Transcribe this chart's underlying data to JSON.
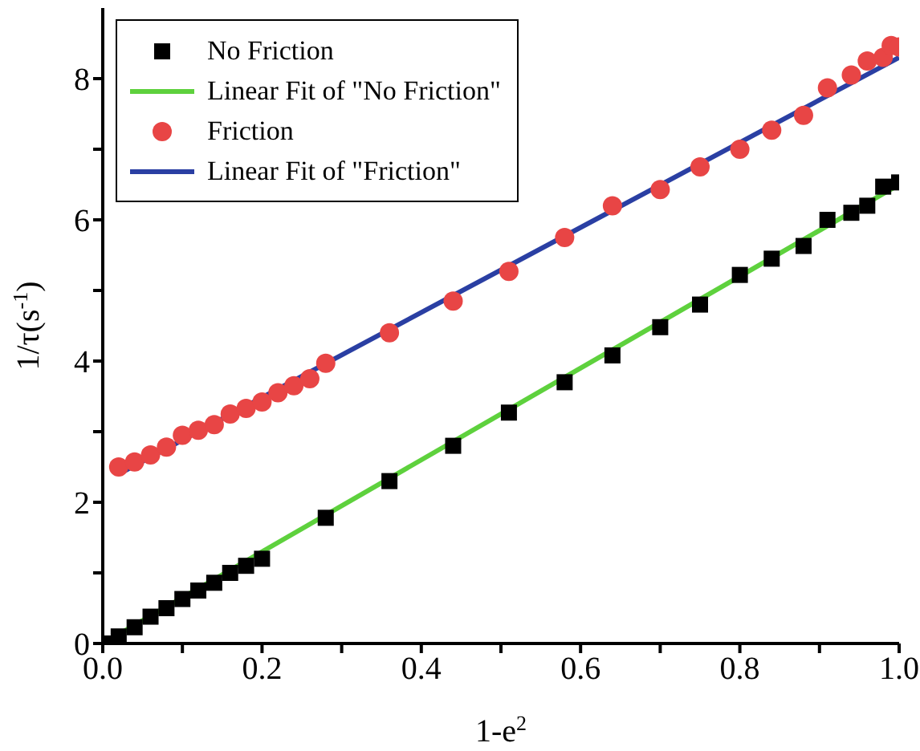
{
  "chart_data": {
    "type": "scatter",
    "xlabel": "1-e$^{2}$",
    "ylabel": "1/τ(s$^{-1}$)",
    "xlim": [
      0,
      1
    ],
    "ylim": [
      0,
      9
    ],
    "xticks": [
      {
        "value": 0,
        "label": "0.0"
      },
      {
        "value": 0.1,
        "label": null
      },
      {
        "value": 0.2,
        "label": "0.2"
      },
      {
        "value": 0.3,
        "label": null
      },
      {
        "value": 0.4,
        "label": "0.4"
      },
      {
        "value": 0.5,
        "label": null
      },
      {
        "value": 0.6,
        "label": "0.6"
      },
      {
        "value": 0.7,
        "label": null
      },
      {
        "value": 0.8,
        "label": "0.8"
      },
      {
        "value": 0.9,
        "label": null
      },
      {
        "value": 1,
        "label": "1.0"
      }
    ],
    "yticks": [
      0,
      {
        "value": 1,
        "label": null
      },
      2,
      {
        "value": 3,
        "label": null
      },
      4,
      {
        "value": 5,
        "label": null
      },
      6,
      {
        "value": 7,
        "label": null
      },
      8
    ],
    "grid": false,
    "legend": "top left",
    "series": [
      {
        "name": "No Friction",
        "marker": "square",
        "color": "#000000",
        "x": [
          0,
          0.02,
          0.04,
          0.06,
          0.08,
          0.1,
          0.12,
          0.14,
          0.16,
          0.18,
          0.2,
          0.28,
          0.36,
          0.44,
          0.51,
          0.58,
          0.64,
          0.7,
          0.75,
          0.8,
          0.84,
          0.88,
          0.91,
          0.94,
          0.96,
          0.98,
          1.0
        ],
        "values": [
          0,
          0.1,
          0.23,
          0.38,
          0.5,
          0.63,
          0.75,
          0.86,
          1.0,
          1.1,
          1.2,
          1.78,
          2.3,
          2.8,
          3.27,
          3.7,
          4.08,
          4.48,
          4.8,
          5.22,
          5.45,
          5.63,
          6.0,
          6.1,
          6.2,
          6.47,
          6.53
        ]
      },
      {
        "name": "Linear Fit of \"No Friction\"",
        "type": "line",
        "marker": "none",
        "color": "#5ed13d",
        "x": [
          0,
          1
        ],
        "values": [
          0,
          6.5
        ]
      },
      {
        "name": "Friction",
        "marker": "circle",
        "color": "#e84545",
        "x": [
          0.02,
          0.04,
          0.06,
          0.08,
          0.1,
          0.12,
          0.14,
          0.16,
          0.18,
          0.2,
          0.22,
          0.24,
          0.26,
          0.28,
          0.36,
          0.44,
          0.51,
          0.58,
          0.64,
          0.7,
          0.75,
          0.8,
          0.84,
          0.88,
          0.91,
          0.94,
          0.96,
          0.98,
          0.99,
          1.0
        ],
        "values": [
          2.5,
          2.57,
          2.67,
          2.78,
          2.95,
          3.02,
          3.1,
          3.25,
          3.33,
          3.42,
          3.55,
          3.65,
          3.75,
          3.97,
          4.4,
          4.85,
          5.27,
          5.75,
          6.2,
          6.43,
          6.75,
          7.0,
          7.27,
          7.48,
          7.87,
          8.05,
          8.25,
          8.3,
          8.47,
          8.45
        ]
      },
      {
        "name": "Linear Fit of \"Friction\"",
        "type": "line",
        "marker": "none",
        "color": "#2a3fa3",
        "x": [
          0.02,
          1
        ],
        "values": [
          2.4,
          8.3
        ]
      }
    ]
  }
}
